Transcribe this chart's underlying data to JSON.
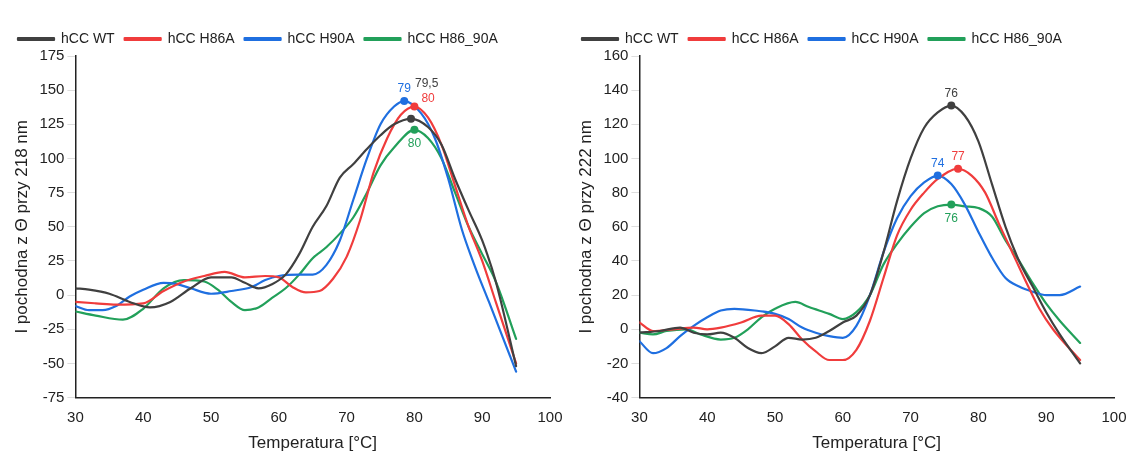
{
  "chart_data": [
    {
      "type": "line",
      "xlabel": "Temperatura [°C]",
      "ylabel": "I pochodna z Θ przy 218 nm",
      "xlim": [
        30,
        100
      ],
      "xticks": [
        30,
        40,
        50,
        60,
        70,
        80,
        90,
        100
      ],
      "ylim": [
        -75,
        175
      ],
      "yticks": [
        -75,
        -50,
        -25,
        0,
        25,
        50,
        75,
        100,
        125,
        150,
        175
      ],
      "legend": "top left",
      "grid": false,
      "series": [
        {
          "name": "hCC WT",
          "color": "#404040",
          "x": [
            30,
            32,
            35,
            38,
            41,
            44,
            47,
            50,
            53,
            55,
            57,
            59,
            61,
            63,
            65,
            67,
            69,
            71,
            73,
            75,
            77,
            79.5,
            82,
            84,
            86,
            88,
            90,
            92,
            95
          ],
          "values": [
            5,
            4,
            1,
            -5,
            -9,
            -5,
            5,
            13,
            13,
            9,
            5,
            8,
            15,
            30,
            50,
            65,
            86,
            96,
            107,
            117,
            125,
            129,
            123,
            110,
            85,
            62,
            40,
            10,
            -52
          ]
        },
        {
          "name": "hCC H86A",
          "color": "#f03c3c",
          "x": [
            30,
            33,
            36,
            40,
            43,
            46,
            49,
            52,
            55,
            58,
            60,
            62,
            64,
            66,
            68,
            70,
            72,
            74,
            76,
            78,
            80,
            82,
            84,
            86,
            88,
            90,
            92,
            95
          ],
          "values": [
            -5,
            -6,
            -7,
            -6,
            3,
            10,
            14,
            17,
            13,
            14,
            13,
            6,
            2,
            3,
            12,
            28,
            55,
            90,
            115,
            132,
            138,
            130,
            110,
            80,
            50,
            25,
            -5,
            -50
          ]
        },
        {
          "name": "hCC H90A",
          "color": "#1f6fe0",
          "x": [
            30,
            32,
            34,
            36,
            38,
            40,
            43,
            45,
            47,
            50,
            53,
            56,
            58,
            60,
            63,
            65,
            67,
            69,
            71,
            73,
            75,
            77,
            78.5,
            81,
            83,
            85,
            87,
            89,
            91,
            95
          ],
          "values": [
            -8,
            -11,
            -11,
            -8,
            -1,
            4,
            9,
            8,
            5,
            1,
            3,
            6,
            11,
            14,
            15,
            15,
            22,
            40,
            70,
            100,
            125,
            138,
            142,
            133,
            115,
            85,
            48,
            20,
            -5,
            -56
          ]
        },
        {
          "name": "hCC H86_90A",
          "color": "#22a05a",
          "x": [
            30,
            33,
            37,
            40,
            43,
            46,
            49,
            51,
            53,
            55,
            57,
            59,
            61,
            63,
            65,
            67,
            69,
            71,
            73,
            75,
            77,
            80,
            82,
            84,
            86,
            88,
            90,
            92,
            95
          ],
          "values": [
            -12,
            -15,
            -18,
            -10,
            5,
            11,
            10,
            4,
            -5,
            -11,
            -9,
            -2,
            5,
            15,
            27,
            35,
            45,
            57,
            75,
            95,
            108,
            121,
            115,
            100,
            75,
            50,
            30,
            10,
            -32
          ]
        }
      ],
      "annotations": [
        {
          "text": "79",
          "x": 78.5,
          "y": 142
        },
        {
          "text": "79,5",
          "x": 79.5,
          "y": 129
        },
        {
          "text": "80",
          "x": 80,
          "y": 138
        },
        {
          "text": "80",
          "x": 80,
          "y": 121
        }
      ]
    },
    {
      "type": "line",
      "xlabel": "Temperatura [°C]",
      "ylabel": "I pochodna z Θ przy 222 nm",
      "xlim": [
        30,
        100
      ],
      "xticks": [
        30,
        40,
        50,
        60,
        70,
        80,
        90,
        100
      ],
      "ylim": [
        -40,
        160
      ],
      "yticks": [
        -40,
        -20,
        0,
        20,
        40,
        60,
        80,
        100,
        120,
        140,
        160
      ],
      "legend": "top left",
      "grid": false,
      "series": [
        {
          "name": "hCC WT",
          "color": "#404040",
          "x": [
            30,
            33,
            36,
            38,
            40,
            42,
            44,
            46,
            48,
            50,
            52,
            54,
            56,
            58,
            60,
            62,
            64,
            66,
            68,
            70,
            72,
            74,
            76,
            78,
            80,
            82,
            84,
            86,
            88,
            90,
            92,
            95
          ],
          "values": [
            -2,
            -1,
            1,
            -2,
            -3,
            -2,
            -5,
            -11,
            -14,
            -10,
            -5,
            -6,
            -5,
            -1,
            4,
            8,
            20,
            45,
            75,
            100,
            118,
            127,
            131,
            125,
            110,
            85,
            60,
            40,
            25,
            10,
            -3,
            -20
          ]
        },
        {
          "name": "hCC H86A",
          "color": "#f03c3c",
          "x": [
            30,
            32,
            35,
            38,
            40,
            42,
            45,
            48,
            50,
            52,
            54,
            56,
            58,
            60,
            62,
            64,
            66,
            68,
            70,
            72,
            74,
            77,
            79,
            81,
            83,
            85,
            87,
            89,
            91,
            95
          ],
          "values": [
            4,
            -1,
            0,
            1,
            0,
            1,
            4,
            8,
            8,
            3,
            -6,
            -13,
            -18,
            -18,
            -12,
            5,
            30,
            55,
            70,
            80,
            88,
            94,
            90,
            80,
            62,
            45,
            28,
            12,
            0,
            -18
          ]
        },
        {
          "name": "hCC H90A",
          "color": "#1f6fe0",
          "x": [
            30,
            32,
            34,
            36,
            38,
            40,
            42,
            44,
            47,
            50,
            52,
            54,
            56,
            58,
            60,
            62,
            64,
            66,
            68,
            70,
            72,
            74,
            76,
            78,
            80,
            82,
            84,
            86,
            88,
            90,
            92,
            95
          ],
          "values": [
            -7,
            -14,
            -11,
            -4,
            2,
            7,
            11,
            12,
            11,
            9,
            6,
            1,
            -2,
            -4,
            -5,
            2,
            20,
            45,
            65,
            78,
            86,
            90,
            85,
            73,
            57,
            42,
            30,
            25,
            22,
            20,
            20,
            25
          ]
        },
        {
          "name": "hCC H86_90A",
          "color": "#22a05a",
          "x": [
            30,
            32,
            34,
            37,
            39,
            42,
            44,
            46,
            48,
            50,
            53,
            55,
            58,
            60,
            62,
            64,
            66,
            68,
            70,
            72,
            74,
            76,
            78,
            80,
            82,
            84,
            86,
            88,
            90,
            92,
            95
          ],
          "values": [
            -2,
            -3,
            -1,
            0,
            -3,
            -6,
            -5,
            0,
            7,
            12,
            16,
            13,
            9,
            6,
            10,
            20,
            38,
            50,
            60,
            68,
            72,
            73,
            72,
            71,
            66,
            52,
            40,
            27,
            15,
            5,
            -8
          ]
        }
      ],
      "annotations": [
        {
          "text": "76",
          "x": 76,
          "y": 131
        },
        {
          "text": "77",
          "x": 77,
          "y": 94
        },
        {
          "text": "74",
          "x": 74,
          "y": 90
        },
        {
          "text": "76",
          "x": 76,
          "y": 73
        }
      ]
    }
  ]
}
